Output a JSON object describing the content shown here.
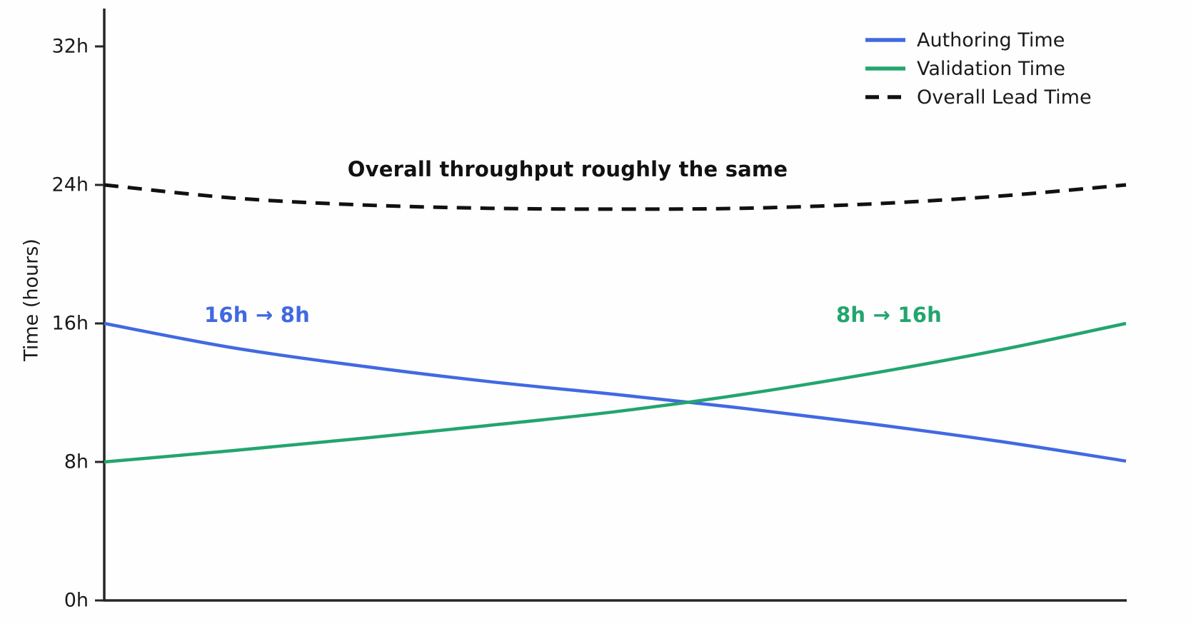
{
  "chart_data": {
    "type": "line",
    "title": "",
    "xlabel": "",
    "ylabel": "Time (hours)",
    "ylim": [
      0,
      32
    ],
    "xlim": [
      0,
      1
    ],
    "grid": false,
    "x_axis_ticks": [],
    "yticks": [
      {
        "value": 0,
        "label": "0h"
      },
      {
        "value": 8,
        "label": "8h"
      },
      {
        "value": 16,
        "label": "16h"
      },
      {
        "value": 24,
        "label": "24h"
      },
      {
        "value": 32,
        "label": "32h"
      }
    ],
    "x": [
      0,
      0.125,
      0.25,
      0.375,
      0.5,
      0.625,
      0.75,
      0.875,
      1
    ],
    "series": [
      {
        "name": "Authoring Time",
        "color": "#4169e1",
        "style": "solid",
        "values": [
          16.0,
          14.6,
          13.55,
          12.65,
          11.9,
          11.1,
          10.2,
          9.2,
          8.05
        ],
        "start_value_hours": 16,
        "end_value_hours": 8
      },
      {
        "name": "Validation Time",
        "color": "#23a56e",
        "style": "solid",
        "values": [
          8.0,
          8.65,
          9.35,
          10.1,
          10.9,
          11.9,
          13.1,
          14.45,
          16.0
        ],
        "start_value_hours": 8,
        "end_value_hours": 16
      },
      {
        "name": "Overall Lead Time",
        "color": "#111111",
        "style": "dashed",
        "values": [
          24.0,
          23.25,
          22.85,
          22.65,
          22.6,
          22.65,
          22.9,
          23.35,
          24.0
        ],
        "start_value_hours": 24,
        "end_value_hours": 24
      }
    ],
    "legend": {
      "position": "upper right",
      "frame": false,
      "entries": [
        "Authoring Time",
        "Validation Time",
        "Overall Lead Time"
      ]
    },
    "annotations": {
      "overall": {
        "text": "Overall throughput roughly the same",
        "color": "#111111"
      },
      "authoring": {
        "text": "16h → 8h",
        "color": "#4169e1"
      },
      "validation": {
        "text": "8h → 16h",
        "color": "#23a56e"
      }
    },
    "axis_color": "#262626"
  }
}
